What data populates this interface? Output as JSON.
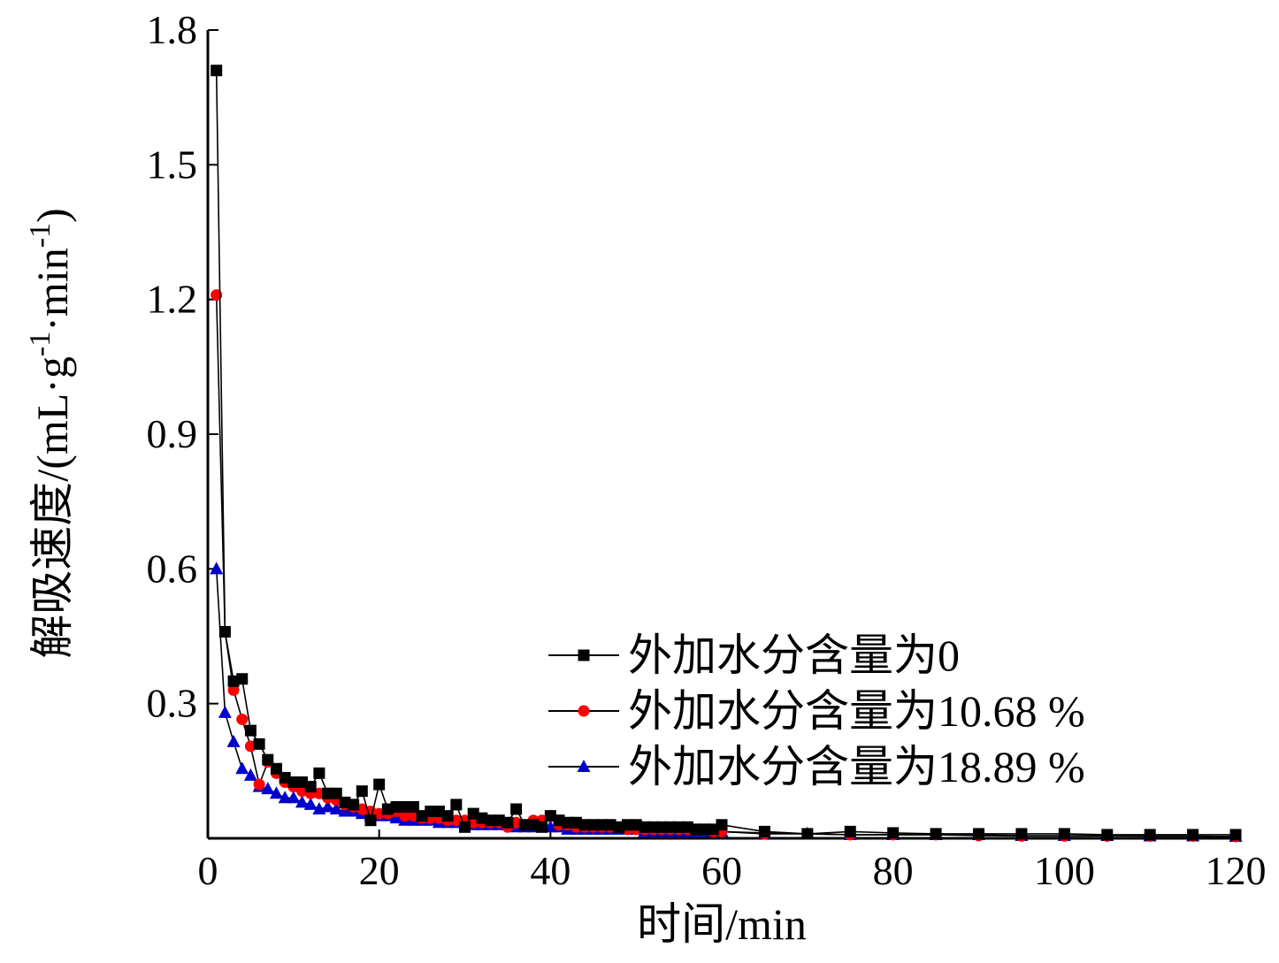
{
  "chart_data": {
    "type": "line",
    "title": "",
    "xlabel": "时间/min",
    "ylabel": {
      "prefix": "解吸速度/(mL·g",
      "sup1": "-1",
      "middle": "·min",
      "sup2": "-1",
      "suffix": ")"
    },
    "xlim": [
      0,
      120
    ],
    "ylim": [
      0,
      1.8
    ],
    "xticks": [
      "0",
      "20",
      "40",
      "60",
      "80",
      "100",
      "120"
    ],
    "yticks": [
      "0.3",
      "0.6",
      "0.9",
      "1.2",
      "1.5",
      "1.8"
    ],
    "grid": false,
    "legend_position": "bottom-right",
    "series": [
      {
        "name": "外加水分含量为0",
        "color": "#000000",
        "marker": "square",
        "x": [
          1,
          2,
          3,
          4,
          5,
          6,
          7,
          8,
          9,
          10,
          11,
          12,
          13,
          14,
          15,
          16,
          17,
          18,
          19,
          20,
          21,
          22,
          23,
          24,
          25,
          26,
          27,
          28,
          29,
          30,
          31,
          32,
          33,
          34,
          35,
          36,
          37,
          38,
          39,
          40,
          41,
          42,
          43,
          44,
          45,
          46,
          47,
          48,
          49,
          50,
          51,
          52,
          53,
          54,
          55,
          56,
          57,
          58,
          59,
          60,
          65,
          70,
          75,
          80,
          85,
          90,
          95,
          100,
          105,
          110,
          115,
          120
        ],
        "y": [
          1.71,
          0.46,
          0.35,
          0.355,
          0.24,
          0.21,
          0.175,
          0.155,
          0.135,
          0.125,
          0.125,
          0.115,
          0.145,
          0.1,
          0.1,
          0.08,
          0.075,
          0.105,
          0.04,
          0.12,
          0.065,
          0.07,
          0.07,
          0.07,
          0.05,
          0.06,
          0.06,
          0.05,
          0.075,
          0.025,
          0.055,
          0.045,
          0.04,
          0.04,
          0.035,
          0.065,
          0.03,
          0.03,
          0.025,
          0.05,
          0.04,
          0.035,
          0.035,
          0.03,
          0.03,
          0.03,
          0.03,
          0.025,
          0.03,
          0.03,
          0.025,
          0.025,
          0.025,
          0.025,
          0.025,
          0.025,
          0.02,
          0.02,
          0.02,
          0.03,
          0.015,
          0.01,
          0.015,
          0.012,
          0.01,
          0.01,
          0.01,
          0.01,
          0.008,
          0.008,
          0.008,
          0.008
        ]
      },
      {
        "name": "外加水分含量为10.68 %",
        "color": "#ff0000",
        "marker": "circle",
        "x": [
          1,
          2,
          3,
          4,
          5,
          6,
          7,
          8,
          9,
          10,
          11,
          12,
          13,
          14,
          15,
          16,
          17,
          18,
          19,
          20,
          21,
          22,
          23,
          24,
          25,
          26,
          27,
          28,
          29,
          30,
          31,
          32,
          33,
          34,
          35,
          36,
          37,
          38,
          39,
          40,
          41,
          42,
          43,
          44,
          45,
          46,
          47,
          48,
          49,
          50,
          51,
          52,
          53,
          54,
          55,
          56,
          57,
          58,
          59,
          60,
          65,
          70,
          75,
          80,
          85,
          90,
          95,
          100,
          105,
          110,
          115,
          120
        ],
        "y": [
          1.21,
          0.46,
          0.33,
          0.265,
          0.205,
          0.12,
          0.17,
          0.145,
          0.125,
          0.115,
          0.105,
          0.1,
          0.1,
          0.09,
          0.085,
          0.075,
          0.07,
          0.065,
          0.06,
          0.055,
          0.055,
          0.06,
          0.05,
          0.05,
          0.045,
          0.045,
          0.045,
          0.04,
          0.04,
          0.04,
          0.035,
          0.035,
          0.035,
          0.035,
          0.025,
          0.035,
          0.03,
          0.04,
          0.04,
          0.05,
          0.03,
          0.03,
          0.025,
          0.025,
          0.025,
          0.025,
          0.025,
          0.025,
          0.02,
          0.02,
          0.02,
          0.02,
          0.02,
          0.02,
          0.02,
          0.02,
          0.02,
          0.02,
          0.015,
          0.015,
          0.01,
          0.01,
          0.008,
          0.008,
          0.008,
          0.006,
          0.005,
          0.005,
          0.005,
          0.005,
          0.005,
          0.004
        ]
      },
      {
        "name": "外加水分含量为18.89 %",
        "color": "#0000cc",
        "marker": "triangle",
        "x": [
          1,
          2,
          3,
          4,
          5,
          6,
          7,
          8,
          9,
          10,
          11,
          12,
          13,
          14,
          15,
          16,
          17,
          18,
          19,
          20,
          21,
          22,
          23,
          24,
          25,
          26,
          27,
          28,
          29,
          30,
          31,
          32,
          33,
          34,
          35,
          36,
          37,
          38,
          39,
          40,
          41,
          42,
          43,
          44,
          45,
          46,
          47,
          48,
          49,
          50,
          51,
          52,
          53,
          54,
          55,
          56,
          57,
          58,
          59,
          60,
          65,
          70,
          75,
          80,
          85,
          90,
          95,
          100,
          105,
          110,
          115,
          120
        ],
        "y": [
          0.6,
          0.28,
          0.215,
          0.155,
          0.14,
          0.115,
          0.11,
          0.1,
          0.09,
          0.09,
          0.08,
          0.075,
          0.065,
          0.07,
          0.065,
          0.06,
          0.06,
          0.055,
          0.05,
          0.05,
          0.05,
          0.045,
          0.04,
          0.04,
          0.04,
          0.04,
          0.035,
          0.035,
          0.035,
          0.035,
          0.03,
          0.03,
          0.03,
          0.03,
          0.03,
          0.025,
          0.025,
          0.025,
          0.025,
          0.025,
          0.025,
          0.02,
          0.02,
          0.02,
          0.02,
          0.02,
          0.02,
          0.02,
          0.02,
          0.02,
          0.015,
          0.015,
          0.015,
          0.015,
          0.015,
          0.015,
          0.015,
          0.015,
          0.015,
          0.015,
          0.012,
          0.01,
          0.008,
          0.008,
          0.008,
          0.008,
          0.006,
          0.006,
          0.006,
          0.005,
          0.005,
          0.004
        ]
      }
    ]
  }
}
